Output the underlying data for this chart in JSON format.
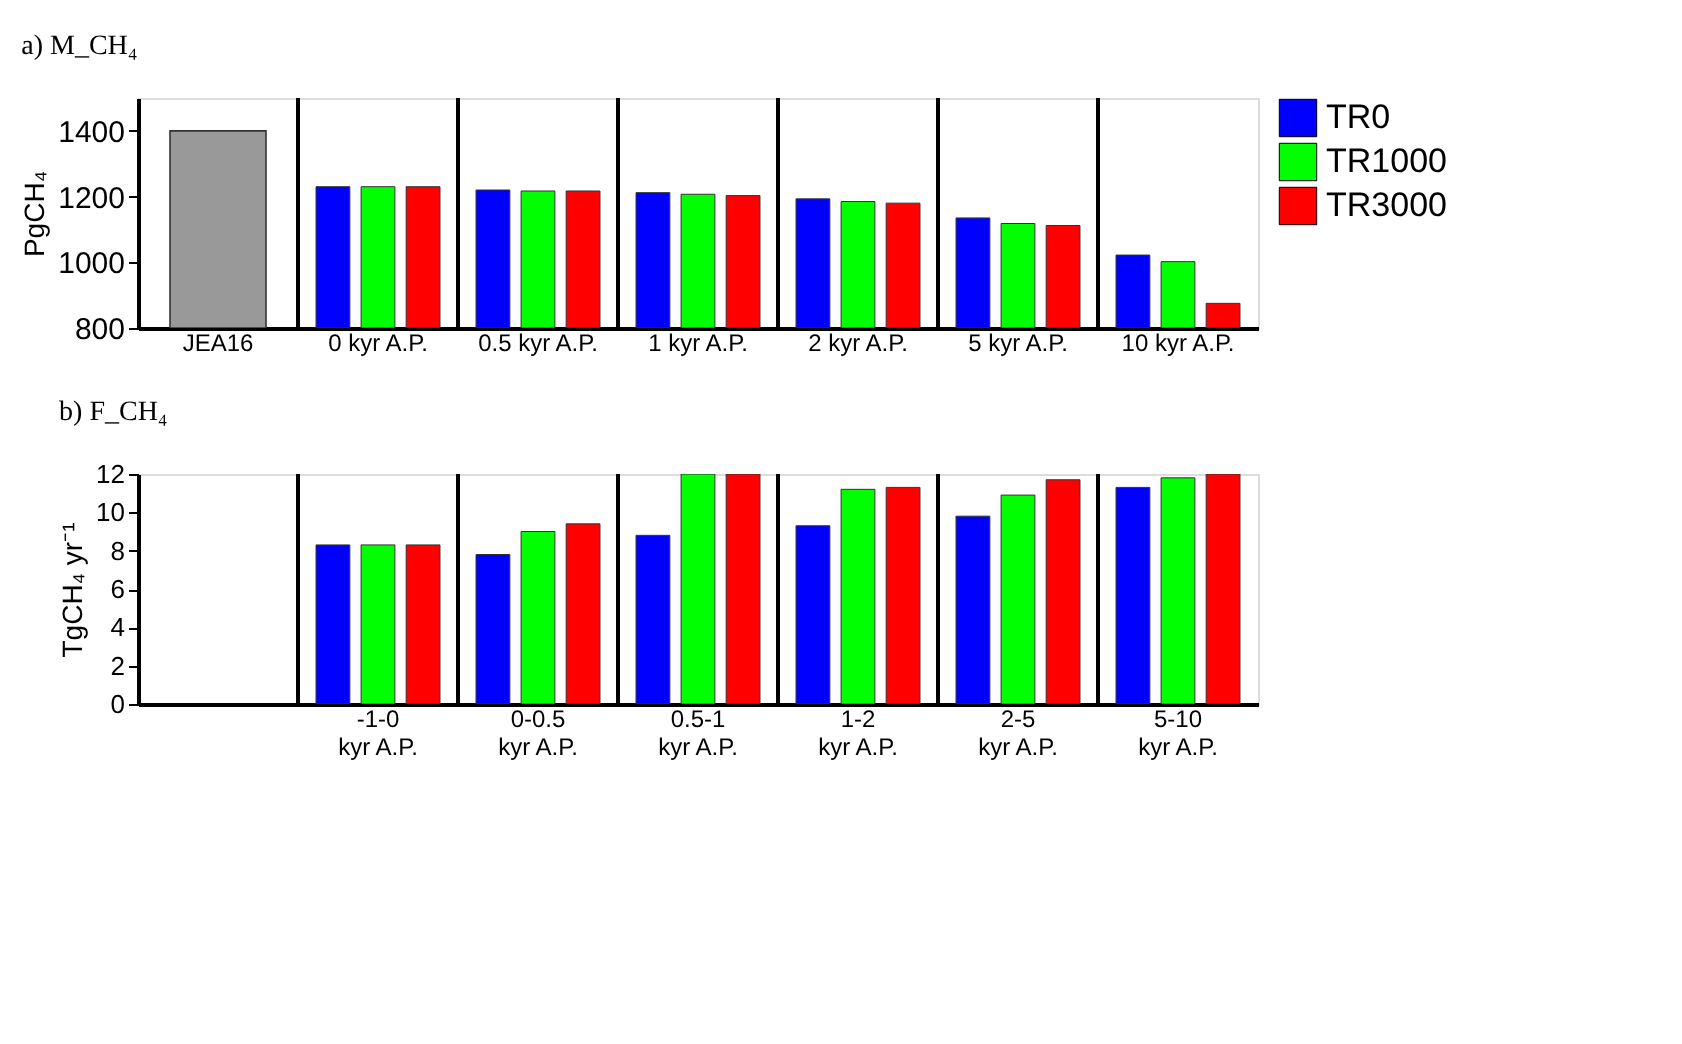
{
  "chart_data": [
    {
      "type": "bar",
      "title": "a) M_CH₄",
      "ylabel": "PgCH₄",
      "categories": [
        "JEA16",
        "0 kyr A.P.",
        "0.5 kyr A.P.",
        "1 kyr A.P.",
        "2 kyr A.P.",
        "5 kyr A.P.",
        "10 kyr A.P."
      ],
      "series": [
        {
          "color": "#999999",
          "values": [
            1400,
            null,
            null,
            null,
            null,
            null,
            null
          ]
        },
        {
          "name": "TR0",
          "color": "#0000ff",
          "values": [
            null,
            1230,
            1220,
            1212,
            1193,
            1135,
            1022
          ]
        },
        {
          "name": "TR1000",
          "color": "#00ff00",
          "values": [
            null,
            1230,
            1217,
            1207,
            1185,
            1118,
            1002
          ]
        },
        {
          "name": "TR3000",
          "color": "#ff0000",
          "values": [
            null,
            1230,
            1217,
            1203,
            1180,
            1112,
            875
          ]
        }
      ],
      "ylim": [
        800,
        1500
      ],
      "yticks": [
        800,
        1000,
        1200,
        1400
      ],
      "grid": "x",
      "legend": "top right"
    },
    {
      "type": "bar",
      "title": "b) F_CH₄",
      "ylabel": "TgCH₄ yr⁻¹",
      "categories": [
        null,
        "-1-0\nkyr A.P.",
        "0-0.5\nkyr A.P.",
        "0.5-1\nkyr A.P.",
        "1-2\nkyr A.P.",
        "2-5\nkyr A.P.",
        "5-10\nkyr A.P."
      ],
      "series": [
        {
          "color": "#0000ff",
          "values": [
            null,
            8.3,
            7.8,
            8.8,
            9.3,
            9.8,
            11.3
          ]
        },
        {
          "color": "#00ff00",
          "values": [
            null,
            8.3,
            9.0,
            12,
            11.2,
            10.9,
            11.8
          ]
        },
        {
          "color": "#ff0000",
          "values": [
            null,
            8.3,
            9.4,
            12,
            11.3,
            11.7,
            12
          ]
        }
      ],
      "ylim": [
        0,
        12
      ],
      "yticks": [
        0,
        2,
        4,
        6,
        8,
        10,
        12
      ],
      "grid": "x"
    }
  ]
}
